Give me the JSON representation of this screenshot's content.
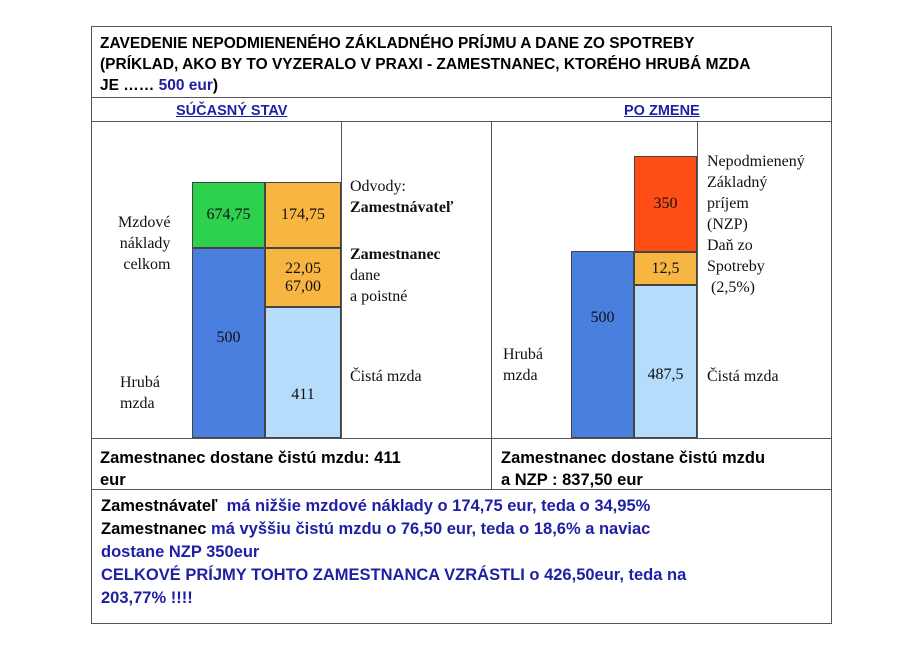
{
  "title": {
    "line1": "ZAVEDENIE  NEPODMIENENÉHO ZÁKLADNÉHO PRÍJMU A  DANE ZO SPOTREBY",
    "line2": "(PRÍKLAD, AKO BY TO VYZERALO V PRAXI  - ZAMESTNANEC, KTORÉHO HRUBÁ MZDA",
    "line3_prefix": "JE …… ",
    "line3_amount": "500 eur",
    "line3_suffix": ")"
  },
  "left": {
    "heading": "SÚČASNÝ  STAV",
    "blocks": {
      "green": "674,75",
      "orange_top": "174,75",
      "orange_mid_1": "22,05",
      "orange_mid_2": "67,00",
      "blue": "500",
      "light_blue": "411"
    },
    "labels": {
      "mzdove_1": "Mzdové",
      "mzdove_2": "náklady",
      "mzdove_3": "celkom",
      "hruba_1": "Hrubá",
      "hruba_2": "mzda",
      "odvody": "Odvody:",
      "zamestnavatel": "Zamestnávateľ",
      "zamestnanec": "Zamestnanec",
      "dane_1": "dane",
      "dane_2": "a poistné",
      "cista": "Čistá mzda"
    },
    "summary_1": "Zamestnanec dostane čistú mzdu: 411",
    "summary_2": "eur"
  },
  "right": {
    "heading": "PO ZMENE",
    "blocks": {
      "red": "350",
      "orange": "12,5",
      "blue": "500",
      "light_blue": "487,5"
    },
    "labels": {
      "nzp_1": "Nepodmienený",
      "nzp_2": "Základný",
      "nzp_3": "príjem",
      "nzp_4": "(NZP)",
      "dan_1": "Daň zo",
      "dan_2": "Spotreby",
      "dan_3": " (2,5%)",
      "hruba_1": "Hrubá",
      "hruba_2": "mzda",
      "cista": "Čistá mzda"
    },
    "summary_1": "Zamestnanec dostane čistú mzdu",
    "summary_2": "a NZP :  837,50 eur"
  },
  "footer": {
    "l1_a": "Zamestnávateľ",
    "l1_b": "  má nižšie mzdové náklady o 174,75 eur, teda o 34,95%",
    "l2_a": "Zamestnanec",
    "l2_b": " má vyššiu čistú mzdu o 76,50 eur, teda o 18,6% a naviac",
    "l3": "dostane NZP  350eur",
    "l4": "CELKOVÉ PRÍJMY TOHTO ZAMESTNANCA VZRÁSTLI o 426,50eur, teda  na",
    "l5": "203,77% !!!!"
  },
  "colors": {
    "green": "#2ed14e",
    "orange": "#f7b541",
    "blue": "#4a7fe0",
    "light_blue": "#b5dcfa",
    "red": "#ff4d16",
    "text_blue": "#1f1fa6"
  }
}
